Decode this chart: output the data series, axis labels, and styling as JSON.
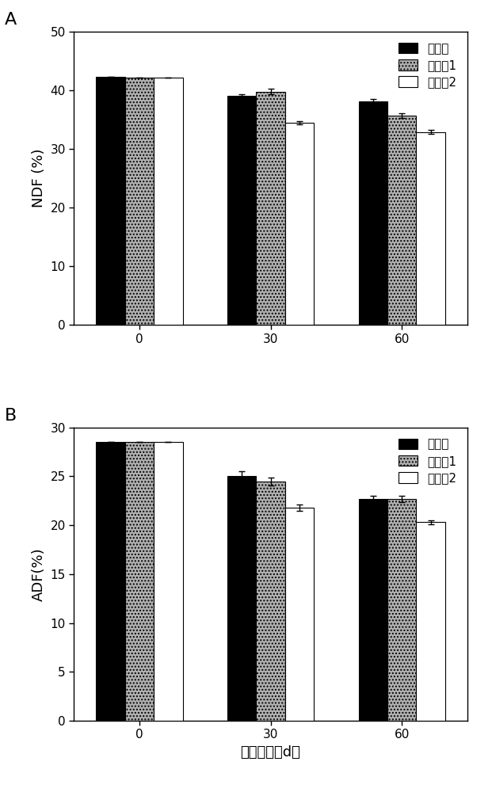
{
  "ndf": {
    "title_label": "A",
    "ylabel": "NDF (%)",
    "ylim": [
      0,
      50
    ],
    "yticks": [
      0,
      10,
      20,
      30,
      40,
      50
    ],
    "x_labels": [
      "0",
      "30",
      "60"
    ],
    "values": [
      [
        42.3,
        39.0,
        38.1
      ],
      [
        42.2,
        39.8,
        35.7
      ],
      [
        42.1,
        34.5,
        32.9
      ]
    ],
    "errors": [
      [
        0.0,
        0.3,
        0.4
      ],
      [
        0.0,
        0.5,
        0.4
      ],
      [
        0.0,
        0.3,
        0.3
      ]
    ]
  },
  "adf": {
    "title_label": "B",
    "ylabel": "ADF(%)",
    "ylim": [
      0,
      30
    ],
    "yticks": [
      0,
      5,
      10,
      15,
      20,
      25,
      30
    ],
    "x_labels": [
      "0",
      "30",
      "60"
    ],
    "values": [
      [
        28.5,
        25.0,
        22.7
      ],
      [
        28.5,
        24.5,
        22.7
      ],
      [
        28.5,
        21.8,
        20.3
      ]
    ],
    "errors": [
      [
        0.0,
        0.5,
        0.3
      ],
      [
        0.0,
        0.4,
        0.3
      ],
      [
        0.0,
        0.3,
        0.2
      ]
    ]
  },
  "xlabel": "青贮时间（d）",
  "bar_colors": [
    "#000000",
    "#b0b0b0",
    "#ffffff"
  ],
  "bar_edgecolors": [
    "#000000",
    "#000000",
    "#000000"
  ],
  "bar_width": 0.22,
  "legend_labels": [
    "对照组",
    "试验组1",
    "试验组2"
  ],
  "hatch_patterns": [
    "",
    "....",
    ""
  ],
  "label_fontsize": 13,
  "tick_fontsize": 11,
  "legend_fontsize": 11
}
